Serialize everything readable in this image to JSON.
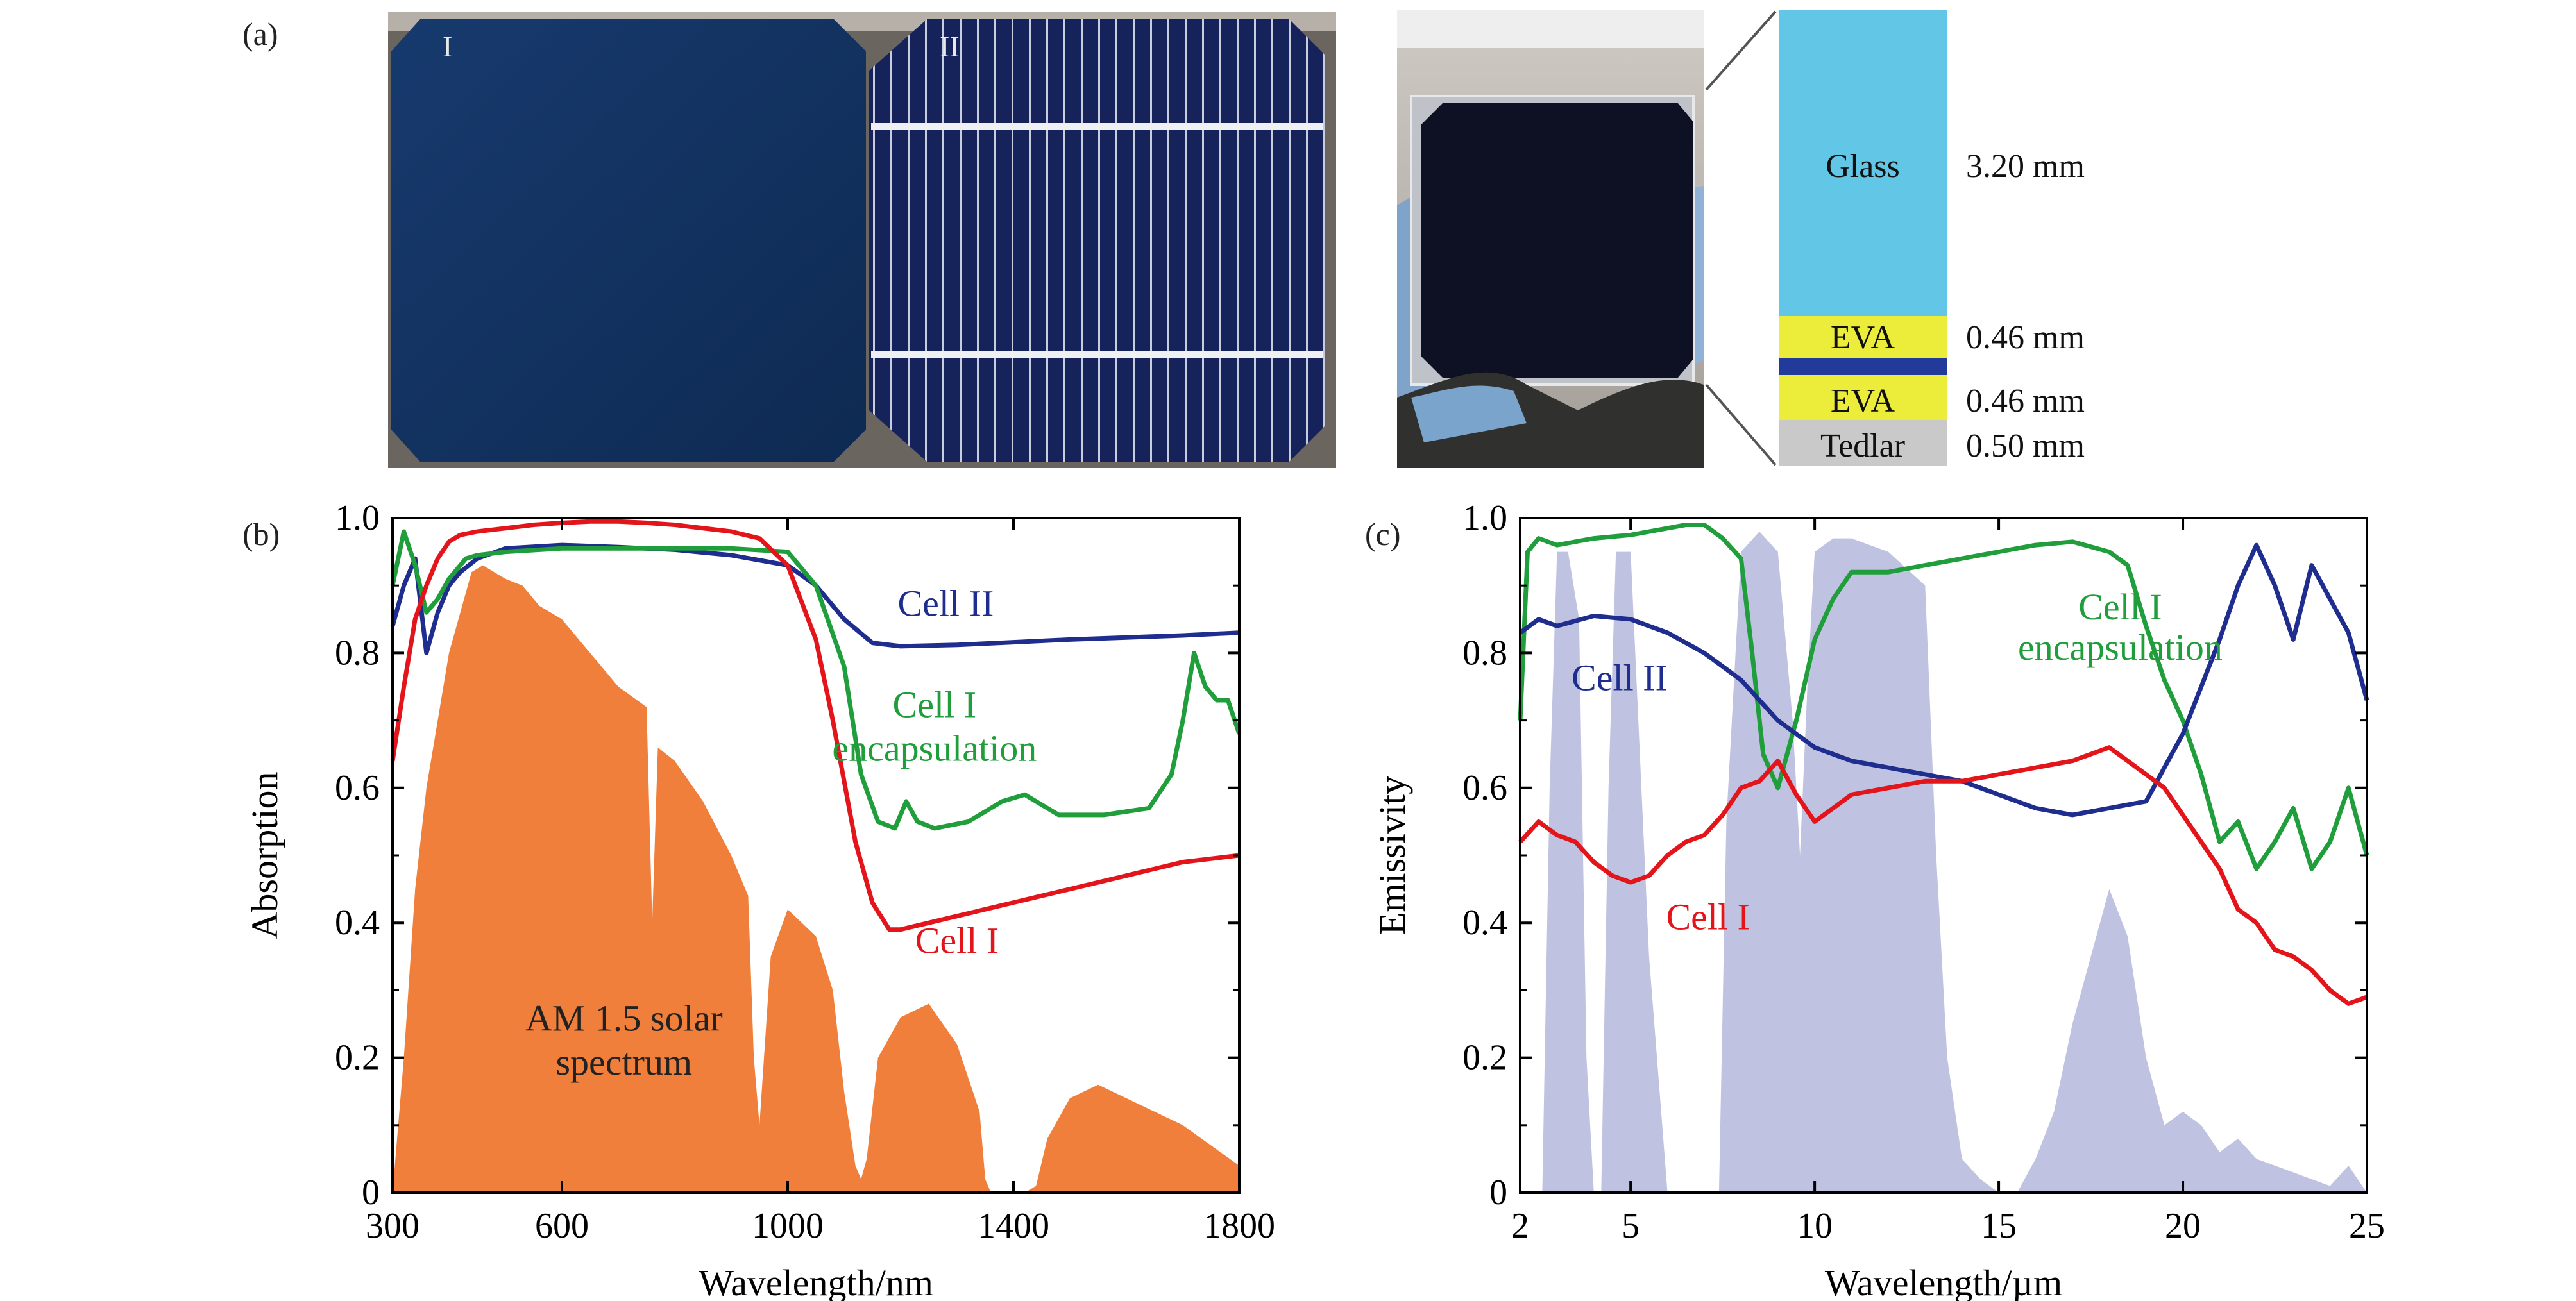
{
  "panels": {
    "a": {
      "label": "(a)",
      "photo1": {
        "cell_I_label": "I",
        "cell_II_label": "II"
      },
      "stack": [
        {
          "name": "Glass",
          "thickness": "3.20 mm",
          "color": "#62c6e6"
        },
        {
          "name": "EVA",
          "thickness": "0.46 mm",
          "color": "#eced3a"
        },
        {
          "name": "",
          "thickness": "",
          "color": "#223b9a"
        },
        {
          "name": "EVA",
          "thickness": "0.46 mm",
          "color": "#eced3a"
        },
        {
          "name": "Tedlar",
          "thickness": "0.50 mm",
          "color": "#c9c9c9"
        }
      ]
    },
    "b": {
      "label": "(b)"
    },
    "c": {
      "label": "(c)"
    }
  },
  "colors": {
    "cell_I": "#e3151b",
    "cell_II": "#1f2d8f",
    "cell_I_encapsulation": "#1f9e3b",
    "solar": "#ef7f3a",
    "atm": "#b8bbdd"
  },
  "chart_data": [
    {
      "type": "line",
      "panel": "b",
      "xlabel": "Wavelength/nm",
      "ylabel": "Absorption",
      "xlim": [
        300,
        1800
      ],
      "ylim": [
        0,
        1.0
      ],
      "xticks": [
        "300",
        "600",
        "1000",
        "1400",
        "1800"
      ],
      "yticks": [
        "0",
        "0.2",
        "0.4",
        "0.6",
        "0.8",
        "1.0"
      ],
      "grid": false,
      "series": [
        {
          "name": "Cell II",
          "color_key": "cell_II",
          "x": [
            300,
            320,
            340,
            360,
            380,
            400,
            420,
            450,
            500,
            600,
            700,
            800,
            900,
            1000,
            1050,
            1100,
            1150,
            1200,
            1300,
            1400,
            1500,
            1600,
            1700,
            1800
          ],
          "y": [
            0.84,
            0.9,
            0.94,
            0.8,
            0.86,
            0.9,
            0.92,
            0.94,
            0.955,
            0.96,
            0.957,
            0.953,
            0.945,
            0.93,
            0.9,
            0.85,
            0.815,
            0.81,
            0.812,
            0.816,
            0.82,
            0.823,
            0.826,
            0.83
          ]
        },
        {
          "name": "Cell I encapsulation",
          "color_key": "cell_I_encapsulation",
          "x": [
            300,
            320,
            340,
            360,
            380,
            400,
            430,
            450,
            500,
            600,
            700,
            800,
            900,
            1000,
            1050,
            1100,
            1130,
            1160,
            1190,
            1210,
            1230,
            1260,
            1320,
            1380,
            1420,
            1480,
            1560,
            1640,
            1680,
            1700,
            1720,
            1740,
            1760,
            1780,
            1800
          ],
          "y": [
            0.9,
            0.98,
            0.93,
            0.86,
            0.88,
            0.91,
            0.94,
            0.945,
            0.95,
            0.955,
            0.955,
            0.955,
            0.955,
            0.95,
            0.9,
            0.78,
            0.62,
            0.55,
            0.54,
            0.58,
            0.55,
            0.54,
            0.55,
            0.58,
            0.59,
            0.56,
            0.56,
            0.57,
            0.62,
            0.7,
            0.8,
            0.75,
            0.73,
            0.73,
            0.68
          ]
        },
        {
          "name": "Cell I",
          "color_key": "cell_I",
          "x": [
            300,
            320,
            340,
            360,
            380,
            400,
            420,
            450,
            500,
            550,
            600,
            650,
            700,
            750,
            800,
            900,
            950,
            1000,
            1050,
            1080,
            1120,
            1150,
            1180,
            1200,
            1300,
            1400,
            1500,
            1600,
            1700,
            1800
          ],
          "y": [
            0.64,
            0.75,
            0.85,
            0.9,
            0.94,
            0.965,
            0.975,
            0.98,
            0.985,
            0.99,
            0.993,
            0.995,
            0.995,
            0.993,
            0.99,
            0.98,
            0.97,
            0.93,
            0.82,
            0.7,
            0.52,
            0.43,
            0.39,
            0.39,
            0.41,
            0.43,
            0.45,
            0.47,
            0.49,
            0.5
          ]
        }
      ],
      "solar_spectrum": {
        "name": "AM 1.5 solar spectrum",
        "x": [
          300,
          320,
          340,
          360,
          380,
          400,
          420,
          440,
          460,
          480,
          500,
          530,
          560,
          600,
          650,
          700,
          750,
          760,
          770,
          800,
          850,
          900,
          930,
          940,
          950,
          970,
          1000,
          1050,
          1080,
          1100,
          1120,
          1130,
          1140,
          1160,
          1200,
          1250,
          1300,
          1340,
          1350,
          1360,
          1380,
          1400,
          1420,
          1440,
          1460,
          1500,
          1550,
          1600,
          1650,
          1700,
          1750,
          1800
        ],
        "y": [
          0,
          0.2,
          0.45,
          0.6,
          0.7,
          0.8,
          0.86,
          0.92,
          0.93,
          0.92,
          0.91,
          0.9,
          0.87,
          0.85,
          0.8,
          0.75,
          0.72,
          0.4,
          0.66,
          0.64,
          0.58,
          0.5,
          0.44,
          0.2,
          0.1,
          0.35,
          0.42,
          0.38,
          0.3,
          0.15,
          0.04,
          0.02,
          0.05,
          0.2,
          0.26,
          0.28,
          0.22,
          0.12,
          0.02,
          0,
          0,
          0,
          0,
          0.01,
          0.08,
          0.14,
          0.16,
          0.14,
          0.12,
          0.1,
          0.07,
          0.04
        ]
      },
      "annotations": [
        {
          "text": "Cell II",
          "x": 1280,
          "y": 0.855
        },
        {
          "text": "Cell I",
          "x": 1260,
          "y": 0.705
        },
        {
          "text": "encapsulation",
          "x": 1260,
          "y": 0.64
        },
        {
          "text": "Cell I",
          "x": 1300,
          "y": 0.355
        },
        {
          "text": "AM 1.5 solar",
          "x": 710,
          "y": 0.24
        },
        {
          "text": "spectrum",
          "x": 710,
          "y": 0.175
        }
      ]
    },
    {
      "type": "line",
      "panel": "c",
      "xlabel": "Wavelength/µm",
      "ylabel": "Emissivity",
      "xlim": [
        2,
        25
      ],
      "ylim": [
        0,
        1.0
      ],
      "xticks": [
        "2",
        "5",
        "10",
        "15",
        "20",
        "25"
      ],
      "yticks": [
        "0",
        "0.2",
        "0.4",
        "0.6",
        "0.8",
        "1.0"
      ],
      "grid": false,
      "series": [
        {
          "name": "Cell I encapsulation",
          "color_key": "cell_I_encapsulation",
          "x": [
            2,
            2.2,
            2.5,
            3,
            4,
            5,
            6,
            6.5,
            7,
            7.5,
            8,
            8.3,
            8.6,
            9,
            9.5,
            10,
            10.5,
            11,
            12,
            13,
            14,
            15,
            16,
            17,
            18,
            18.5,
            19,
            19.5,
            20,
            20.5,
            21,
            21.5,
            22,
            22.5,
            23,
            23.5,
            24,
            24.5,
            25
          ],
          "y": [
            0.7,
            0.95,
            0.97,
            0.96,
            0.97,
            0.975,
            0.985,
            0.99,
            0.99,
            0.97,
            0.94,
            0.8,
            0.65,
            0.6,
            0.7,
            0.82,
            0.88,
            0.92,
            0.92,
            0.93,
            0.94,
            0.95,
            0.96,
            0.965,
            0.95,
            0.93,
            0.84,
            0.76,
            0.7,
            0.62,
            0.52,
            0.55,
            0.48,
            0.52,
            0.57,
            0.48,
            0.52,
            0.6,
            0.5
          ]
        },
        {
          "name": "Cell II",
          "color_key": "cell_II",
          "x": [
            2,
            2.5,
            3,
            4,
            5,
            6,
            7,
            8,
            9,
            10,
            11,
            12,
            13,
            14,
            15,
            16,
            17,
            18,
            19,
            19.5,
            20,
            20.5,
            21,
            21.5,
            22,
            22.5,
            23,
            23.5,
            24,
            24.5,
            25
          ],
          "y": [
            0.83,
            0.85,
            0.84,
            0.855,
            0.85,
            0.83,
            0.8,
            0.76,
            0.7,
            0.66,
            0.64,
            0.63,
            0.62,
            0.61,
            0.59,
            0.57,
            0.56,
            0.57,
            0.58,
            0.63,
            0.68,
            0.75,
            0.82,
            0.9,
            0.96,
            0.9,
            0.82,
            0.93,
            0.88,
            0.83,
            0.73
          ]
        },
        {
          "name": "Cell I",
          "color_key": "cell_I",
          "x": [
            2,
            2.5,
            3,
            3.5,
            4,
            4.5,
            5,
            5.5,
            6,
            6.5,
            7,
            7.5,
            8,
            8.5,
            9,
            9.5,
            10,
            10.5,
            11,
            12,
            13,
            14,
            15,
            16,
            17,
            18,
            18.5,
            19,
            19.5,
            20,
            20.5,
            21,
            21.5,
            22,
            22.5,
            23,
            23.5,
            24,
            24.5,
            25
          ],
          "y": [
            0.52,
            0.55,
            0.53,
            0.52,
            0.49,
            0.47,
            0.46,
            0.47,
            0.5,
            0.52,
            0.53,
            0.56,
            0.6,
            0.61,
            0.64,
            0.59,
            0.55,
            0.57,
            0.59,
            0.6,
            0.61,
            0.61,
            0.62,
            0.63,
            0.64,
            0.66,
            0.64,
            0.62,
            0.6,
            0.56,
            0.52,
            0.48,
            0.42,
            0.4,
            0.36,
            0.35,
            0.33,
            0.3,
            0.28,
            0.29
          ]
        }
      ],
      "atmospheric_window": {
        "x": [
          2,
          2.6,
          2.8,
          3.0,
          3.3,
          3.6,
          3.8,
          4.0,
          4.2,
          4.4,
          4.6,
          5.0,
          5.5,
          6.0,
          6.5,
          7.0,
          7.4,
          7.6,
          8.0,
          8.5,
          9.0,
          9.4,
          9.6,
          9.8,
          10,
          10.5,
          11,
          12,
          13,
          13.3,
          13.6,
          14.0,
          14.5,
          15,
          15.5,
          16,
          16.5,
          17,
          17.5,
          18,
          18.5,
          19,
          19.5,
          20,
          20.5,
          21,
          21.5,
          22,
          22.5,
          23,
          23.5,
          24,
          24.5,
          25
        ],
        "y": [
          0,
          0,
          0.6,
          0.95,
          0.95,
          0.85,
          0.2,
          0,
          0,
          0.6,
          0.95,
          0.95,
          0.35,
          0,
          0,
          0,
          0,
          0.55,
          0.95,
          0.98,
          0.95,
          0.7,
          0.5,
          0.75,
          0.95,
          0.97,
          0.97,
          0.95,
          0.9,
          0.5,
          0.2,
          0.05,
          0.02,
          0,
          0,
          0.05,
          0.12,
          0.25,
          0.35,
          0.45,
          0.38,
          0.2,
          0.1,
          0.12,
          0.1,
          0.06,
          0.08,
          0.05,
          0.04,
          0.03,
          0.02,
          0.01,
          0.04,
          0
        ]
      },
      "annotations": [
        {
          "text": "Cell I",
          "x": 18.3,
          "y": 0.85
        },
        {
          "text": "encapsulation",
          "x": 18.3,
          "y": 0.79
        },
        {
          "text": "Cell II",
          "x": 4.7,
          "y": 0.745
        },
        {
          "text": "Cell I",
          "x": 7.1,
          "y": 0.39
        }
      ]
    }
  ]
}
